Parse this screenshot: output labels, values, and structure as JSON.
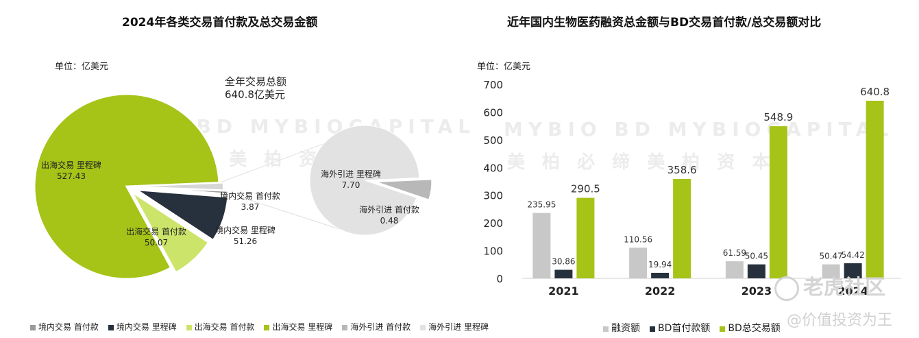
{
  "left_chart": {
    "title": "2024年各类交易首付款及总交易金额",
    "unit": "单位：亿美元",
    "total_label_line1": "全年交易总额",
    "total_label_line2": "640.8亿美元"
  },
  "right_chart": {
    "title": "近年国内生物医药融资总金额与BD交易首付款/总交易额对比",
    "unit": "单位：亿美元"
  },
  "watermarks": {
    "left_en": "MYBIO BD  MYBIOCAPITAL",
    "left_cn": "美 柏 必 缔    美 柏 资 本",
    "right_en": "MYBIO BD  MYBIOCAPITAL",
    "right_cn": "美 柏 必 缔    美 柏 资 本",
    "corner_logo": "老虎社区",
    "corner_handle": "@价值投资为王"
  },
  "colors": {
    "overseas_milestone": "#a6c318",
    "overseas_upfront": "#cde46a",
    "domestic_milestone": "#27313d",
    "domestic_upfront": "#9a9a9a",
    "inlicense_milestone": "#e2e2e2",
    "inlicense_upfront": "#b8b8b8",
    "financing": "#c8c8c8",
    "bd_upfront": "#27313d",
    "bd_total": "#a6c318"
  },
  "chart_data": [
    {
      "type": "pie",
      "title": "2024年各类交易首付款及总交易金额",
      "unit": "亿美元",
      "slices": [
        {
          "name": "境内交易 首付款",
          "value": 3.87,
          "label_line1": "境内交易 首付款",
          "label_line2": "3.87",
          "color": "#9a9a9a"
        },
        {
          "name": "境内交易 里程碑",
          "value": 51.26,
          "label_line1": "境内交易 里程碑",
          "label_line2": "51.26",
          "color": "#27313d"
        },
        {
          "name": "出海交易 首付款",
          "value": 50.07,
          "label_line1": "出海交易 首付款",
          "label_line2": "50.07",
          "color": "#cde46a"
        },
        {
          "name": "出海交易 里程碑",
          "value": 527.43,
          "label_line1": "出海交易 里程碑",
          "label_line2": "527.43",
          "color": "#a6c318"
        }
      ],
      "secondary_pie": [
        {
          "name": "海外引进 里程碑",
          "value": 7.7,
          "label_line1": "海外引进 里程碑",
          "label_line2": "7.70",
          "color": "#e2e2e2"
        },
        {
          "name": "海外引进 首付款",
          "value": 0.48,
          "label_line1": "海外引进 首付款",
          "label_line2": "0.48",
          "color": "#b8b8b8"
        }
      ],
      "legend_order": [
        "境内交易 首付款",
        "境内交易 里程碑",
        "出海交易 首付款",
        "出海交易 里程碑",
        "海外引进 首付款",
        "海外引进 里程碑"
      ],
      "legend_placement": "bottom"
    },
    {
      "type": "bar",
      "title": "近年国内生物医药融资总金额与BD交易首付款/总交易额对比",
      "unit": "亿美元",
      "categories": [
        "2021",
        "2022",
        "2023",
        "2024"
      ],
      "series": [
        {
          "name": "融资额",
          "values": [
            235.95,
            110.56,
            61.59,
            50.47
          ],
          "color": "#c8c8c8"
        },
        {
          "name": "BD首付款额",
          "values": [
            30.86,
            19.94,
            50.45,
            54.42
          ],
          "color": "#27313d"
        },
        {
          "name": "BD总交易额",
          "values": [
            290.5,
            358.6,
            548.9,
            640.8
          ],
          "color": "#a6c318"
        }
      ],
      "data_labels": [
        [
          "235.95",
          "110.56",
          "61.59",
          "50.47"
        ],
        [
          "30.86",
          "19.94",
          "50.45",
          "54.42"
        ],
        [
          "290.5",
          "358.6",
          "548.9",
          "640.8"
        ]
      ],
      "ylim": [
        0,
        700
      ],
      "yticks": [
        0,
        100,
        200,
        300,
        400,
        500,
        600,
        700
      ],
      "ytick_labels": [
        "0",
        "100",
        "200",
        "300",
        "400",
        "500",
        "600",
        "700"
      ],
      "grid": false,
      "legend_placement": "bottom"
    }
  ]
}
